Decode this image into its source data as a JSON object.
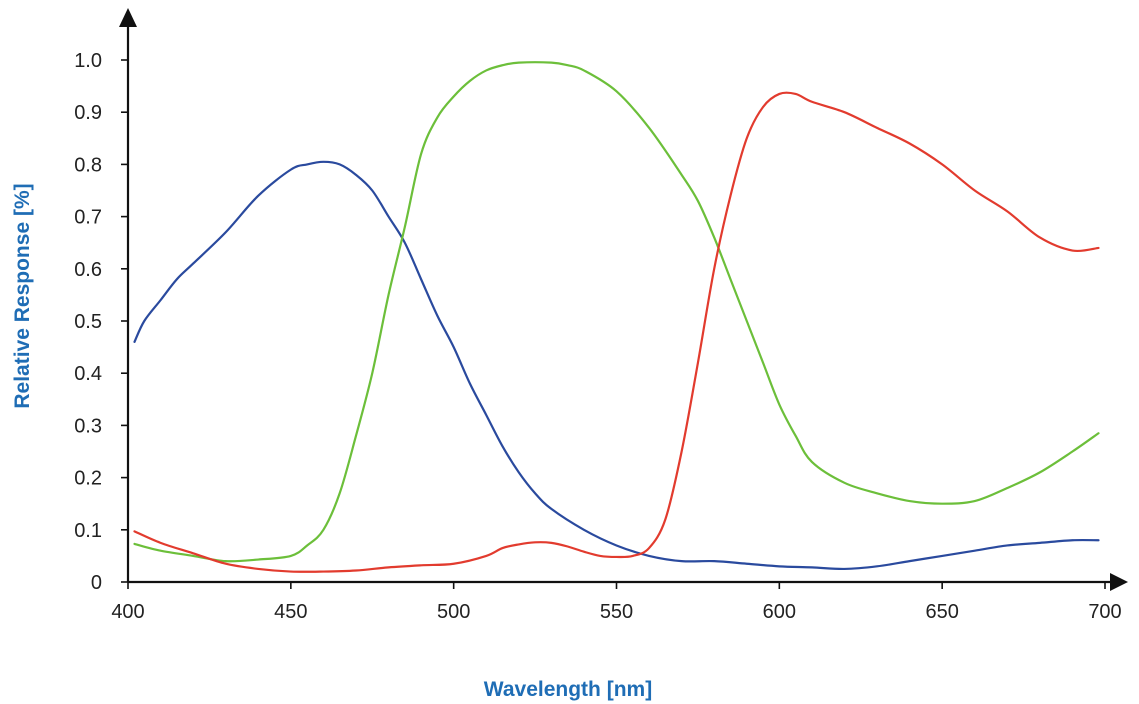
{
  "chart_data": {
    "type": "line",
    "title": "",
    "xlabel": "Wavelength [nm]",
    "ylabel": "Relative Response [%]",
    "xlim": [
      400,
      700
    ],
    "ylim": [
      0,
      1.0
    ],
    "x_ticks": [
      400,
      450,
      500,
      550,
      600,
      650,
      700
    ],
    "x_tick_labels": [
      "400",
      "450",
      "500",
      "550",
      "600",
      "650",
      "700"
    ],
    "y_ticks": [
      0,
      0.1,
      0.2,
      0.3,
      0.4,
      0.5,
      0.6,
      0.7,
      0.8,
      0.9,
      1.0
    ],
    "y_tick_labels": [
      "0",
      "0.1",
      "0.2",
      "0.3",
      "0.4",
      "0.5",
      "0.6",
      "0.7",
      "0.8",
      "0.9",
      "1.0"
    ],
    "grid": false,
    "legend": "none",
    "axis_title_color": "#1f6db5",
    "series": [
      {
        "color": "#2a4a9e",
        "points": [
          [
            402,
            0.46
          ],
          [
            405,
            0.5
          ],
          [
            410,
            0.54
          ],
          [
            415,
            0.58
          ],
          [
            420,
            0.61
          ],
          [
            430,
            0.67
          ],
          [
            440,
            0.74
          ],
          [
            450,
            0.79
          ],
          [
            455,
            0.8
          ],
          [
            460,
            0.805
          ],
          [
            465,
            0.8
          ],
          [
            470,
            0.78
          ],
          [
            475,
            0.75
          ],
          [
            480,
            0.7
          ],
          [
            485,
            0.65
          ],
          [
            490,
            0.58
          ],
          [
            495,
            0.51
          ],
          [
            500,
            0.45
          ],
          [
            505,
            0.38
          ],
          [
            510,
            0.32
          ],
          [
            515,
            0.26
          ],
          [
            520,
            0.21
          ],
          [
            525,
            0.17
          ],
          [
            530,
            0.14
          ],
          [
            540,
            0.1
          ],
          [
            550,
            0.07
          ],
          [
            560,
            0.05
          ],
          [
            570,
            0.04
          ],
          [
            580,
            0.04
          ],
          [
            590,
            0.035
          ],
          [
            600,
            0.03
          ],
          [
            610,
            0.028
          ],
          [
            620,
            0.025
          ],
          [
            630,
            0.03
          ],
          [
            640,
            0.04
          ],
          [
            650,
            0.05
          ],
          [
            660,
            0.06
          ],
          [
            670,
            0.07
          ],
          [
            680,
            0.075
          ],
          [
            690,
            0.08
          ],
          [
            698,
            0.08
          ]
        ]
      },
      {
        "color": "#6cbf3a",
        "points": [
          [
            402,
            0.073
          ],
          [
            410,
            0.06
          ],
          [
            420,
            0.05
          ],
          [
            430,
            0.04
          ],
          [
            440,
            0.043
          ],
          [
            450,
            0.05
          ],
          [
            455,
            0.07
          ],
          [
            460,
            0.1
          ],
          [
            465,
            0.17
          ],
          [
            470,
            0.28
          ],
          [
            475,
            0.4
          ],
          [
            480,
            0.55
          ],
          [
            485,
            0.68
          ],
          [
            490,
            0.82
          ],
          [
            495,
            0.89
          ],
          [
            500,
            0.93
          ],
          [
            505,
            0.96
          ],
          [
            510,
            0.98
          ],
          [
            515,
            0.99
          ],
          [
            520,
            0.995
          ],
          [
            530,
            0.995
          ],
          [
            535,
            0.99
          ],
          [
            540,
            0.98
          ],
          [
            550,
            0.94
          ],
          [
            560,
            0.87
          ],
          [
            570,
            0.78
          ],
          [
            575,
            0.73
          ],
          [
            580,
            0.66
          ],
          [
            585,
            0.58
          ],
          [
            590,
            0.5
          ],
          [
            595,
            0.42
          ],
          [
            600,
            0.34
          ],
          [
            605,
            0.28
          ],
          [
            610,
            0.23
          ],
          [
            620,
            0.19
          ],
          [
            630,
            0.17
          ],
          [
            640,
            0.155
          ],
          [
            650,
            0.15
          ],
          [
            660,
            0.155
          ],
          [
            670,
            0.18
          ],
          [
            680,
            0.21
          ],
          [
            690,
            0.25
          ],
          [
            698,
            0.285
          ]
        ]
      },
      {
        "color": "#e23b2e",
        "points": [
          [
            402,
            0.097
          ],
          [
            410,
            0.075
          ],
          [
            420,
            0.055
          ],
          [
            430,
            0.035
          ],
          [
            440,
            0.025
          ],
          [
            450,
            0.02
          ],
          [
            460,
            0.02
          ],
          [
            470,
            0.022
          ],
          [
            480,
            0.028
          ],
          [
            490,
            0.032
          ],
          [
            500,
            0.035
          ],
          [
            510,
            0.05
          ],
          [
            515,
            0.065
          ],
          [
            520,
            0.072
          ],
          [
            525,
            0.076
          ],
          [
            530,
            0.075
          ],
          [
            535,
            0.068
          ],
          [
            540,
            0.058
          ],
          [
            545,
            0.05
          ],
          [
            550,
            0.048
          ],
          [
            555,
            0.05
          ],
          [
            560,
            0.065
          ],
          [
            565,
            0.12
          ],
          [
            570,
            0.25
          ],
          [
            575,
            0.42
          ],
          [
            580,
            0.6
          ],
          [
            585,
            0.74
          ],
          [
            590,
            0.85
          ],
          [
            595,
            0.91
          ],
          [
            600,
            0.935
          ],
          [
            605,
            0.935
          ],
          [
            610,
            0.92
          ],
          [
            620,
            0.9
          ],
          [
            630,
            0.87
          ],
          [
            640,
            0.84
          ],
          [
            650,
            0.8
          ],
          [
            660,
            0.75
          ],
          [
            670,
            0.71
          ],
          [
            680,
            0.66
          ],
          [
            690,
            0.635
          ],
          [
            698,
            0.64
          ]
        ]
      }
    ]
  }
}
